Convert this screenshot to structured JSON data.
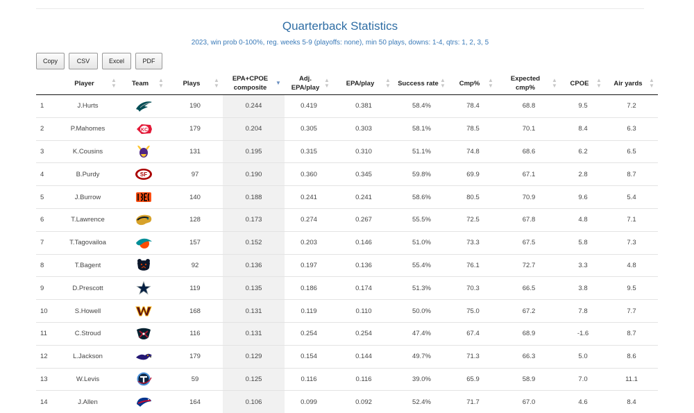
{
  "page": {
    "title": "Quarterback Statistics",
    "subtitle": "2023, win prob 0-100%, reg. weeks 5-9 (playoffs: none), min 50 plays, downs: 1-4, qtrs: 1, 2, 3, 5"
  },
  "buttons": {
    "copy": "Copy",
    "csv": "CSV",
    "excel": "Excel",
    "pdf": "PDF"
  },
  "columns": [
    {
      "label": "",
      "label2": "",
      "sort": ""
    },
    {
      "label": "Player",
      "label2": "",
      "sort": "unsorted"
    },
    {
      "label": "Team",
      "label2": "",
      "sort": "unsorted"
    },
    {
      "label": "Plays",
      "label2": "",
      "sort": "unsorted"
    },
    {
      "label": "EPA+CPOE",
      "label2": "composite",
      "sort": "descending"
    },
    {
      "label": "Adj.",
      "label2": "EPA/play",
      "sort": "unsorted"
    },
    {
      "label": "EPA/play",
      "label2": "",
      "sort": "unsorted"
    },
    {
      "label": "Success rate",
      "label2": "",
      "sort": "unsorted"
    },
    {
      "label": "Cmp%",
      "label2": "",
      "sort": "unsorted"
    },
    {
      "label": "Expected",
      "label2": "cmp%",
      "sort": "unsorted"
    },
    {
      "label": "CPOE",
      "label2": "",
      "sort": "unsorted"
    },
    {
      "label": "Air yards",
      "label2": "",
      "sort": "unsorted"
    }
  ],
  "rows": [
    {
      "rank": "1",
      "player": "J.Hurts",
      "team_icon": "eagles-logo",
      "plays": "190",
      "composite": "0.244",
      "adj_epa": "0.419",
      "epa": "0.381",
      "success": "58.4%",
      "cmp": "78.4",
      "xcmp": "68.8",
      "cpoe": "9.5",
      "air": "7.2"
    },
    {
      "rank": "2",
      "player": "P.Mahomes",
      "team_icon": "chiefs-logo",
      "plays": "179",
      "composite": "0.204",
      "adj_epa": "0.305",
      "epa": "0.303",
      "success": "58.1%",
      "cmp": "78.5",
      "xcmp": "70.1",
      "cpoe": "8.4",
      "air": "6.3"
    },
    {
      "rank": "3",
      "player": "K.Cousins",
      "team_icon": "vikings-logo",
      "plays": "131",
      "composite": "0.195",
      "adj_epa": "0.315",
      "epa": "0.310",
      "success": "51.1%",
      "cmp": "74.8",
      "xcmp": "68.6",
      "cpoe": "6.2",
      "air": "6.5"
    },
    {
      "rank": "4",
      "player": "B.Purdy",
      "team_icon": "49ers-logo",
      "plays": "97",
      "composite": "0.190",
      "adj_epa": "0.360",
      "epa": "0.345",
      "success": "59.8%",
      "cmp": "69.9",
      "xcmp": "67.1",
      "cpoe": "2.8",
      "air": "8.7"
    },
    {
      "rank": "5",
      "player": "J.Burrow",
      "team_icon": "bengals-logo",
      "plays": "140",
      "composite": "0.188",
      "adj_epa": "0.241",
      "epa": "0.241",
      "success": "58.6%",
      "cmp": "80.5",
      "xcmp": "70.9",
      "cpoe": "9.6",
      "air": "5.4"
    },
    {
      "rank": "6",
      "player": "T.Lawrence",
      "team_icon": "jaguars-logo",
      "plays": "128",
      "composite": "0.173",
      "adj_epa": "0.274",
      "epa": "0.267",
      "success": "55.5%",
      "cmp": "72.5",
      "xcmp": "67.8",
      "cpoe": "4.8",
      "air": "7.1"
    },
    {
      "rank": "7",
      "player": "T.Tagovailoa",
      "team_icon": "dolphins-logo",
      "plays": "157",
      "composite": "0.152",
      "adj_epa": "0.203",
      "epa": "0.146",
      "success": "51.0%",
      "cmp": "73.3",
      "xcmp": "67.5",
      "cpoe": "5.8",
      "air": "7.3"
    },
    {
      "rank": "8",
      "player": "T.Bagent",
      "team_icon": "bears-logo",
      "plays": "92",
      "composite": "0.136",
      "adj_epa": "0.197",
      "epa": "0.136",
      "success": "55.4%",
      "cmp": "76.1",
      "xcmp": "72.7",
      "cpoe": "3.3",
      "air": "4.8"
    },
    {
      "rank": "9",
      "player": "D.Prescott",
      "team_icon": "cowboys-logo",
      "plays": "119",
      "composite": "0.135",
      "adj_epa": "0.186",
      "epa": "0.174",
      "success": "51.3%",
      "cmp": "70.3",
      "xcmp": "66.5",
      "cpoe": "3.8",
      "air": "9.5"
    },
    {
      "rank": "10",
      "player": "S.Howell",
      "team_icon": "commanders-logo",
      "plays": "168",
      "composite": "0.131",
      "adj_epa": "0.119",
      "epa": "0.110",
      "success": "50.0%",
      "cmp": "75.0",
      "xcmp": "67.2",
      "cpoe": "7.8",
      "air": "7.7"
    },
    {
      "rank": "11",
      "player": "C.Stroud",
      "team_icon": "texans-logo",
      "plays": "116",
      "composite": "0.131",
      "adj_epa": "0.254",
      "epa": "0.254",
      "success": "47.4%",
      "cmp": "67.4",
      "xcmp": "68.9",
      "cpoe": "-1.6",
      "air": "8.7"
    },
    {
      "rank": "12",
      "player": "L.Jackson",
      "team_icon": "ravens-logo",
      "plays": "179",
      "composite": "0.129",
      "adj_epa": "0.154",
      "epa": "0.144",
      "success": "49.7%",
      "cmp": "71.3",
      "xcmp": "66.3",
      "cpoe": "5.0",
      "air": "8.6"
    },
    {
      "rank": "13",
      "player": "W.Levis",
      "team_icon": "titans-logo",
      "plays": "59",
      "composite": "0.125",
      "adj_epa": "0.116",
      "epa": "0.116",
      "success": "39.0%",
      "cmp": "65.9",
      "xcmp": "58.9",
      "cpoe": "7.0",
      "air": "11.1"
    },
    {
      "rank": "14",
      "player": "J.Allen",
      "team_icon": "bills-logo",
      "plays": "164",
      "composite": "0.106",
      "adj_epa": "0.099",
      "epa": "0.092",
      "success": "52.4%",
      "cmp": "71.7",
      "xcmp": "67.0",
      "cpoe": "4.6",
      "air": "8.4"
    }
  ]
}
